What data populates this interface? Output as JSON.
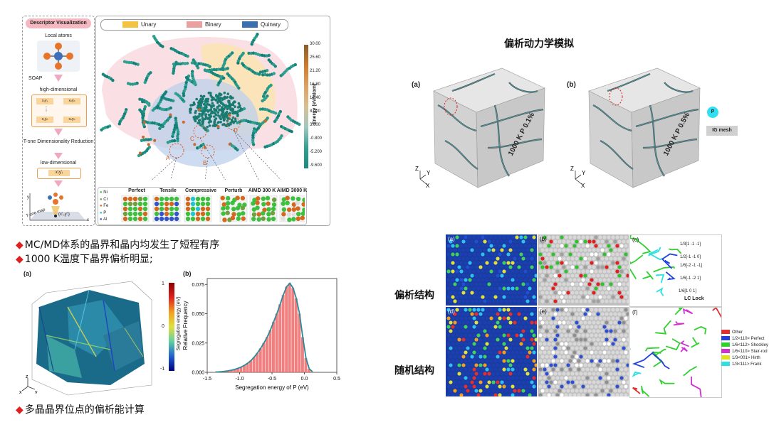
{
  "descriptor": {
    "header": "Descriptor Visualization",
    "steps": [
      "Local atoms",
      "SOAP",
      "high-dimensional",
      "T-sne Dimensionality Reduction",
      "low-dimensional"
    ],
    "hd_labels": [
      "x₁y₁",
      "xₙyₙ",
      "⋮",
      "x₁yₙ",
      "xₙyₙ"
    ],
    "ld_label": "x'ᵢy'ᵢ",
    "tsne_map_label": "T-sne map",
    "point_label": "(x'ᵢ,y'ᵢ)",
    "axis_x": "x",
    "axis_y": "y"
  },
  "tsne": {
    "legend": [
      {
        "label": "Unary",
        "color": "#f5c342"
      },
      {
        "label": "Binary",
        "color": "#eba0a0"
      },
      {
        "label": "Quinary",
        "color": "#3a6fb0"
      }
    ],
    "colorbar": {
      "title": "Energy (eV/atom)",
      "ticks": [
        "30.00",
        "25.60",
        "21.20",
        "16.80",
        "12.40",
        "8.000",
        "3.600",
        "-0.800",
        "-5.200",
        "-9.600"
      ]
    },
    "region_labels": [
      "A",
      "B",
      "C",
      "D"
    ],
    "structures": [
      "Perfect",
      "Tensile",
      "Compressive",
      "Perturb",
      "AIMD 300 K",
      "AIMD 3000 K"
    ],
    "elements": [
      {
        "label": "Ni",
        "color": "#3fbf3f"
      },
      {
        "label": "Cr",
        "color": "#6f9f3f"
      },
      {
        "label": "Fe",
        "color": "#d2691e"
      },
      {
        "label": "P",
        "color": "#22c3d6"
      },
      {
        "label": "Al",
        "color": "#3355cc"
      }
    ]
  },
  "bullets_top": [
    "MC/MD体系的晶界和晶内均发生了短程有序",
    "1000 K温度下晶界偏析明显;"
  ],
  "bullet_bottom": "多晶晶界位点的偏析能计算",
  "seg_struct": {
    "panel_a": "(a)",
    "colorbar_label": "Segregation energy (eV)",
    "colorbar_ticks": [
      "1",
      "0",
      "-1"
    ],
    "axes": [
      "z",
      "x",
      "y"
    ]
  },
  "chart_data": {
    "type": "bar",
    "panel": "(b)",
    "xlabel": "Segregation energy of P (eV)",
    "ylabel": "Relative Frequency",
    "xlim": [
      -1.5,
      0.5
    ],
    "ylim": [
      0,
      0.08
    ],
    "xticks": [
      "-1.5",
      "-1.0",
      "-0.5",
      "0.0",
      "0.5"
    ],
    "yticks": [
      "0.000",
      "0.025",
      "0.050",
      "0.075"
    ],
    "bin_width": 0.05,
    "x": [
      -1.375,
      -1.325,
      -1.275,
      -1.225,
      -1.175,
      -1.125,
      -1.075,
      -1.025,
      -0.975,
      -0.925,
      -0.875,
      -0.825,
      -0.775,
      -0.725,
      -0.675,
      -0.625,
      -0.575,
      -0.525,
      -0.475,
      -0.425,
      -0.375,
      -0.325,
      -0.275,
      -0.225,
      -0.175,
      -0.125,
      -0.075,
      -0.025,
      0.025,
      0.075,
      0.125
    ],
    "values": [
      0.0003,
      0.0004,
      0.0006,
      0.0009,
      0.0013,
      0.0018,
      0.0025,
      0.0034,
      0.0045,
      0.006,
      0.0078,
      0.01,
      0.013,
      0.0165,
      0.0205,
      0.025,
      0.03,
      0.036,
      0.043,
      0.05,
      0.058,
      0.066,
      0.073,
      0.076,
      0.072,
      0.063,
      0.05,
      0.03,
      0.012,
      0.003,
      0.0005
    ]
  },
  "kinetics": {
    "title": "偏析动力学模拟",
    "cube_a_label": "(a)",
    "cube_b_label": "(b)",
    "cube_a_caption": "1000 K P 0.1%",
    "cube_b_caption": "1000 K P 0.5%",
    "legend_p": "P",
    "legend_mesh": "IG mesh",
    "axes": [
      "Z",
      "X",
      "Y"
    ]
  },
  "structure": {
    "row_labels": [
      "偏析结构",
      "随机结构"
    ],
    "panel_labels": [
      "(a)",
      "(b)",
      "(c)",
      "(d)",
      "(e)",
      "(f)"
    ],
    "dislocation_annotations": [
      "1/3[1 -1 -1]",
      "1/2[-1 -1 0]",
      "1/6[-2 -1 -1]",
      "1/6[-1 -2 1]",
      "1/6[1 0 1]",
      "LC Lock"
    ],
    "disloc_legend": [
      {
        "label": "Other",
        "color": "#e03030"
      },
      {
        "label": "1/2<110> Perfect",
        "color": "#2040e0"
      },
      {
        "label": "1/6<112> Shockley",
        "color": "#30d030"
      },
      {
        "label": "1/6<110> Stair-rod",
        "color": "#d030d0"
      },
      {
        "label": "1/3<001> Hirth",
        "color": "#e0e020"
      },
      {
        "label": "1/3<111> Frank",
        "color": "#30e0e0"
      }
    ]
  }
}
